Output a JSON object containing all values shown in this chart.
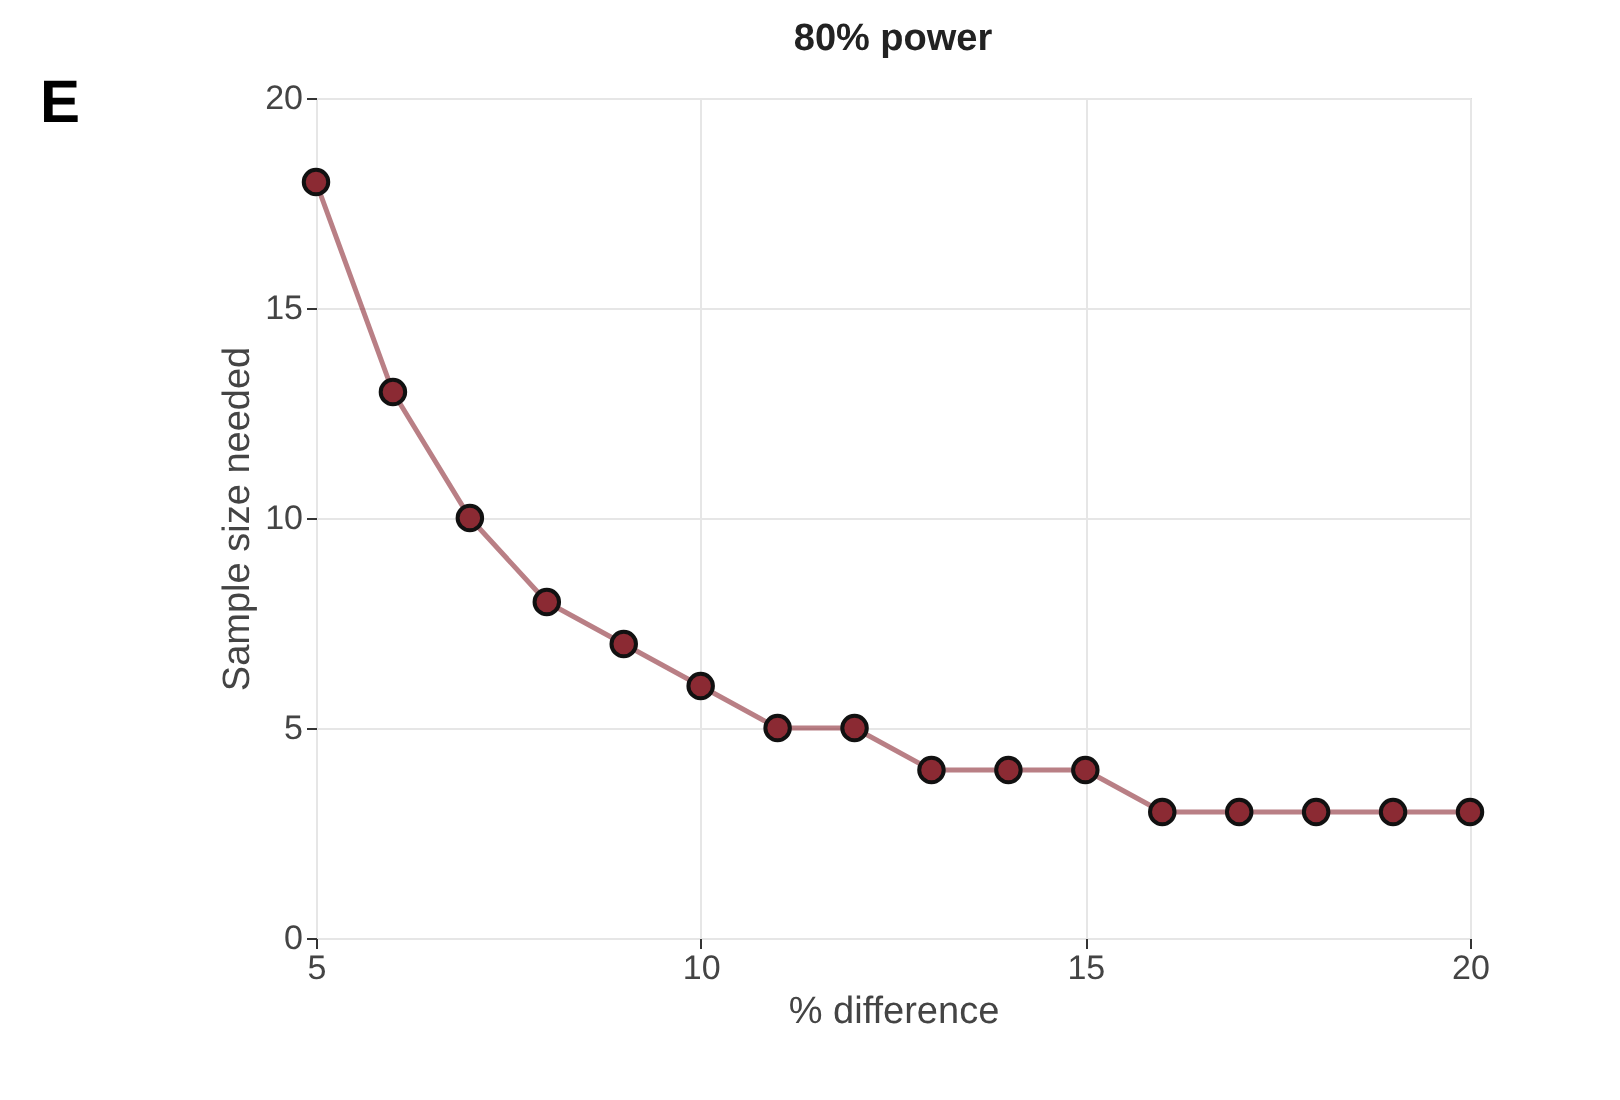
{
  "chart_data": {
    "type": "line",
    "title": "80% power",
    "xlabel": "% difference",
    "ylabel": "Sample size needed",
    "annotations": [
      "E"
    ],
    "x": [
      5,
      6,
      7,
      8,
      9,
      10,
      11,
      12,
      13,
      14,
      15,
      16,
      17,
      18,
      19,
      20
    ],
    "series": [
      {
        "color": "#8b2a33",
        "values": [
          18,
          13,
          10,
          8,
          7,
          6,
          5,
          5,
          4,
          4,
          4,
          3,
          3,
          3,
          3,
          3
        ]
      }
    ],
    "xlim": [
      5,
      20
    ],
    "xticks": [
      5,
      10,
      15,
      20
    ],
    "ylim": [
      0,
      20
    ],
    "yticks": [
      0,
      5,
      10,
      15,
      20
    ],
    "grid": true,
    "marker": "circle",
    "line_style": "solid"
  }
}
